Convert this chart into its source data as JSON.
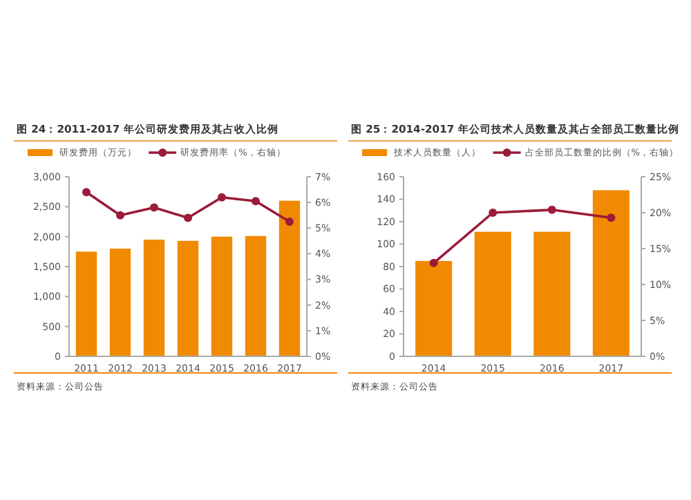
{
  "chart_data": [
    {
      "type": "bar",
      "title": "图 24：2011-2017 年公司研发费用及其占收入比例",
      "categories": [
        "2011",
        "2012",
        "2013",
        "2014",
        "2015",
        "2016",
        "2017"
      ],
      "series": [
        {
          "name": "研发费用（万元）",
          "color": "#f08a00",
          "values": [
            1750,
            1800,
            1950,
            1930,
            2000,
            2010,
            2600
          ]
        },
        {
          "name": "研发费用率（%，右轴）",
          "type": "line",
          "axis": "y2",
          "color": "#9b1b3a",
          "marker": "circle",
          "values": [
            6.4,
            5.5,
            5.8,
            5.4,
            6.2,
            6.05,
            5.25
          ]
        }
      ],
      "ylim": [
        0,
        3000
      ],
      "yticks": [
        0,
        500,
        {
          "value": 1000,
          "label": "1,000"
        },
        {
          "value": 1500,
          "label": "1,500"
        },
        {
          "value": 2000,
          "label": "2,000"
        },
        {
          "value": 2500,
          "label": "2,500"
        },
        {
          "value": 3000,
          "label": "3,000"
        }
      ],
      "y2lim": [
        0,
        7
      ],
      "y2ticks": [
        {
          "value": 0,
          "label": "0%"
        },
        {
          "value": 1,
          "label": "1%"
        },
        {
          "value": 2,
          "label": "2%"
        },
        {
          "value": 3,
          "label": "3%"
        },
        {
          "value": 4,
          "label": "4%"
        },
        {
          "value": 5,
          "label": "5%"
        },
        {
          "value": 6,
          "label": "6%"
        },
        {
          "value": 7,
          "label": "7%"
        }
      ],
      "legend": "top",
      "grid": false,
      "annotations": [
        "资料来源：公司公告"
      ]
    },
    {
      "type": "bar",
      "title": "图 25：2014-2017 年公司技术人员数量及其占全部员工数量比例",
      "categories": [
        "2014",
        "2015",
        "2016",
        "2017"
      ],
      "series": [
        {
          "name": "技术人员数量（人）",
          "color": "#f08a00",
          "values": [
            85,
            111,
            111,
            148
          ]
        },
        {
          "name": "占全部员工数量的比例（%，右轴）",
          "type": "line",
          "axis": "y2",
          "color": "#9b1b3a",
          "marker": "circle",
          "values": [
            13,
            20,
            20.4,
            19.3
          ]
        }
      ],
      "ylim": [
        0,
        160
      ],
      "yticks": [
        0,
        20,
        40,
        60,
        80,
        100,
        120,
        140,
        160
      ],
      "y2lim": [
        0,
        25
      ],
      "y2ticks": [
        {
          "value": 0,
          "label": "0%"
        },
        {
          "value": 5,
          "label": "5%"
        },
        {
          "value": 10,
          "label": "10%"
        },
        {
          "value": 15,
          "label": "15%"
        },
        {
          "value": 20,
          "label": "20%"
        },
        {
          "value": 25,
          "label": "25%"
        }
      ],
      "legend": "top",
      "grid": false,
      "annotations": [
        "资料来源：公司公告"
      ]
    }
  ]
}
